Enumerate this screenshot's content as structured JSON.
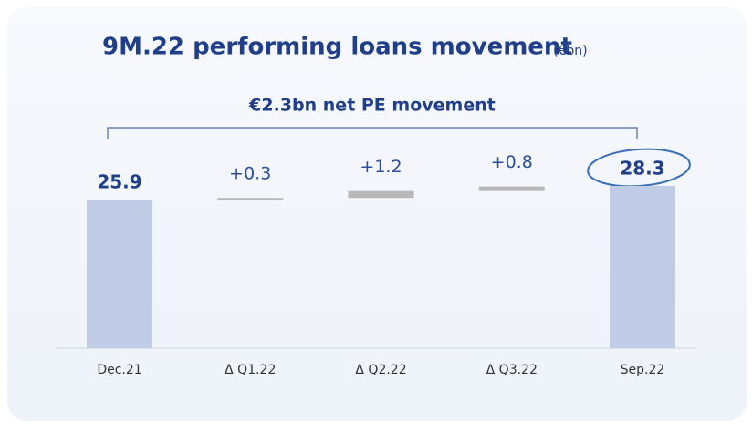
{
  "chart_data": {
    "type": "waterfall",
    "title": "9M.22 performing loans movement",
    "unit": "(€bn)",
    "annotation": "€2.3bn net PE movement",
    "categories": [
      "Dec.21",
      "Δ Q1.22",
      "Δ Q2.22",
      "Δ Q3.22",
      "Sep.22"
    ],
    "values": [
      25.9,
      0.3,
      1.2,
      0.8,
      28.3
    ],
    "value_labels": [
      "25.9",
      "+0.3",
      "+1.2",
      "+0.8",
      "28.3"
    ],
    "total_color": "#c0cce6",
    "delta_color": "#b8b8b8"
  }
}
